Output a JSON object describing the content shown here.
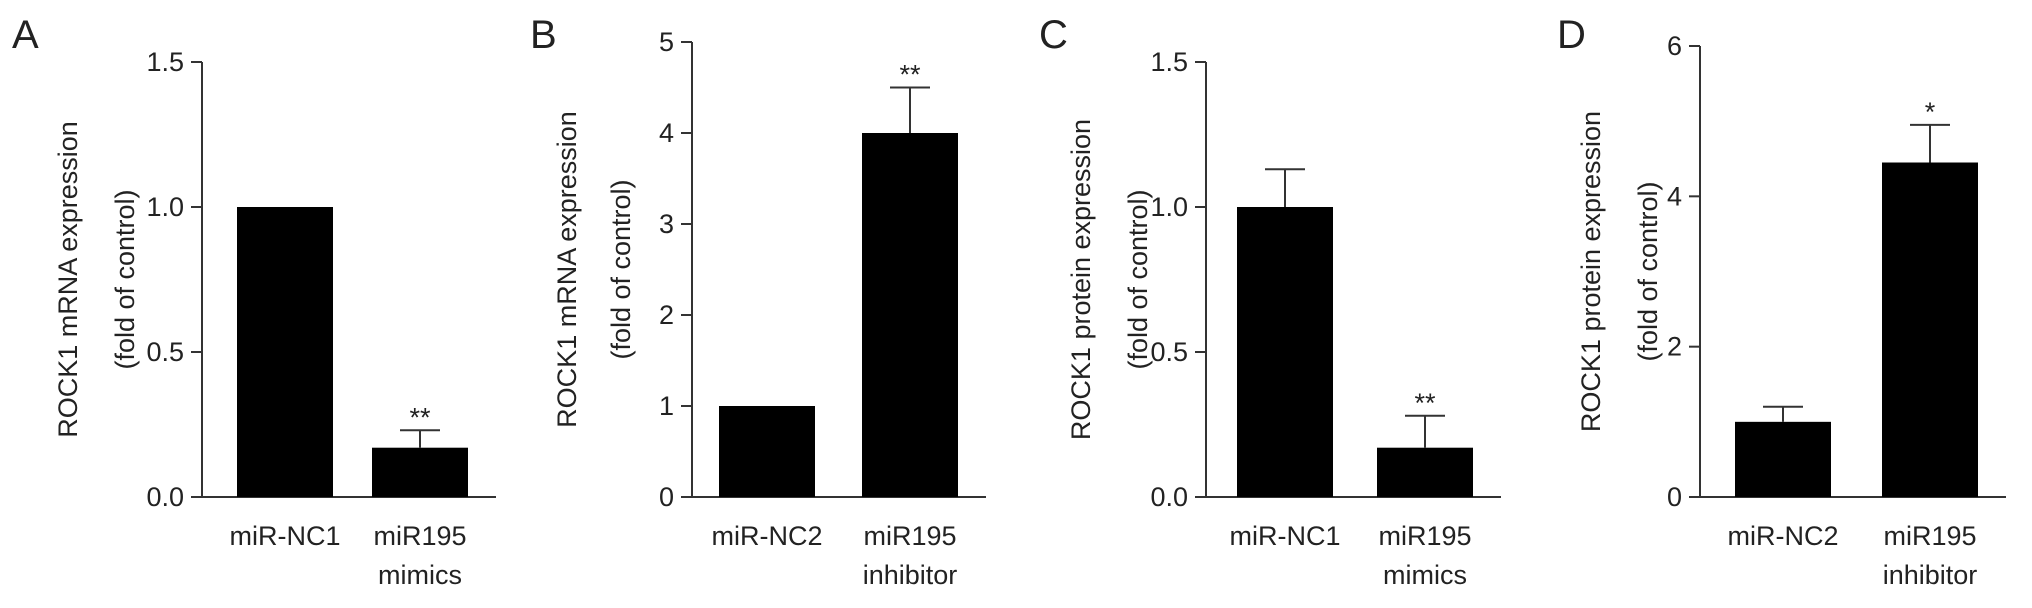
{
  "chart_data": [
    {
      "type": "bar",
      "panel": "A",
      "categories": [
        "miR-NC1",
        "miR195 mimics"
      ],
      "category_lines": [
        [
          "miR-NC1"
        ],
        [
          "miR195",
          "mimics"
        ]
      ],
      "values": [
        1.0,
        0.17
      ],
      "error": [
        0,
        0.06
      ],
      "significance": [
        "",
        "**"
      ],
      "ylabel_lines": [
        "ROCK1 mRNA expression",
        "(fold of control)"
      ],
      "ylim": [
        0,
        1.5
      ],
      "yticks": [
        0.0,
        0.5,
        1.0,
        1.5
      ],
      "ytick_labels": [
        "0.0",
        "0.5",
        "1.0",
        "1.5"
      ],
      "grid": false
    },
    {
      "type": "bar",
      "panel": "B",
      "categories": [
        "miR-NC2",
        "miR195 inhibitor"
      ],
      "category_lines": [
        [
          "miR-NC2"
        ],
        [
          "miR195",
          "inhibitor"
        ]
      ],
      "values": [
        1.0,
        4.0
      ],
      "error": [
        0,
        0.5
      ],
      "significance": [
        "",
        "**"
      ],
      "ylabel_lines": [
        "ROCK1 mRNA expression",
        "(fold of control)"
      ],
      "ylim": [
        0,
        5
      ],
      "yticks": [
        0,
        1,
        2,
        3,
        4,
        5
      ],
      "ytick_labels": [
        "0",
        "1",
        "2",
        "3",
        "4",
        "5"
      ],
      "grid": false
    },
    {
      "type": "bar",
      "panel": "C",
      "categories": [
        "miR-NC1",
        "miR195 mimics"
      ],
      "category_lines": [
        [
          "miR-NC1"
        ],
        [
          "miR195",
          "mimics"
        ]
      ],
      "values": [
        1.0,
        0.17
      ],
      "error": [
        0.13,
        0.11
      ],
      "significance": [
        "",
        "**"
      ],
      "ylabel_lines": [
        "ROCK1 protein expression",
        "(fold of control)"
      ],
      "ylim": [
        0,
        1.5
      ],
      "yticks": [
        0.0,
        0.5,
        1.0,
        1.5
      ],
      "ytick_labels": [
        "0.0",
        "0.5",
        "1.0",
        "1.5"
      ],
      "grid": false
    },
    {
      "type": "bar",
      "panel": "D",
      "categories": [
        "miR-NC2",
        "miR195 inhibitor"
      ],
      "category_lines": [
        [
          "miR-NC2"
        ],
        [
          "miR195",
          "inhibitor"
        ]
      ],
      "values": [
        1.0,
        4.45
      ],
      "error": [
        0.2,
        0.5
      ],
      "significance": [
        "",
        "*"
      ],
      "ylabel_lines": [
        "ROCK1 protein expression",
        "(fold of control)"
      ],
      "ylim": [
        0,
        6
      ],
      "yticks": [
        0,
        2,
        4,
        6
      ],
      "ytick_labels": [
        "0",
        "2",
        "4",
        "6"
      ],
      "grid": false
    }
  ],
  "colors": {
    "bar": "#000000",
    "axis": "#333333",
    "text": "#222222"
  }
}
